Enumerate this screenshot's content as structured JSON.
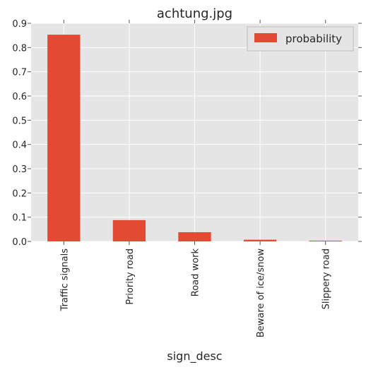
{
  "chart_data": {
    "type": "bar",
    "title": "achtung.jpg",
    "xlabel": "sign_desc",
    "ylabel": "",
    "categories": [
      "Traffic signals",
      "Priority road",
      "Road work",
      "Beware of ice/snow",
      "Slippery road"
    ],
    "series": [
      {
        "name": "probability",
        "values": [
          0.853,
          0.088,
          0.038,
          0.007,
          0.003
        ],
        "color": "#E24A33"
      }
    ],
    "ylim": [
      0.0,
      0.9
    ],
    "yticks": [
      "0.0",
      "0.1",
      "0.2",
      "0.3",
      "0.4",
      "0.5",
      "0.6",
      "0.7",
      "0.8",
      "0.9"
    ],
    "grid": true,
    "legend_position": "top-right",
    "colors": {
      "plot_background": "#E5E5E5",
      "grid": "#FFFFFF",
      "bar": "#E24A33"
    }
  }
}
